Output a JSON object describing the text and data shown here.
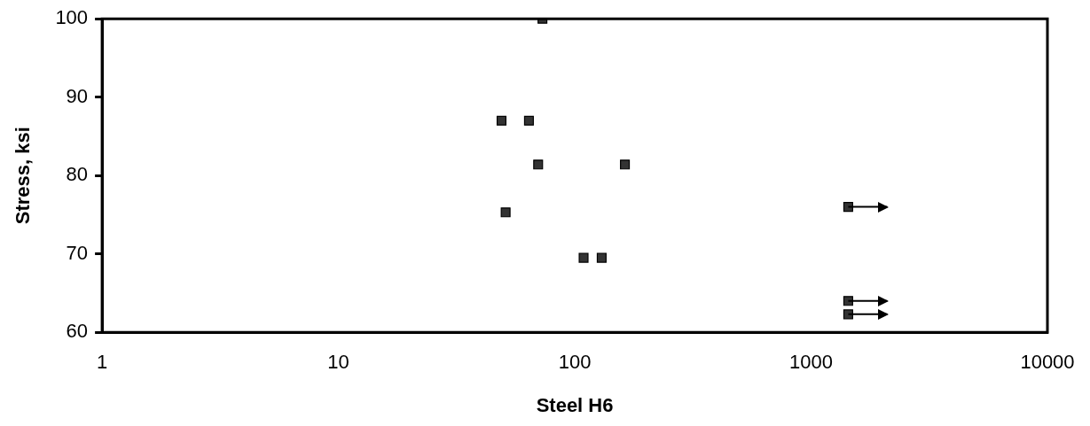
{
  "chart_data": {
    "type": "scatter",
    "xlabel": "Steel H6",
    "ylabel": "Stress, ksi",
    "log": "x",
    "xlim": [
      1,
      10000
    ],
    "xticks": [
      1,
      10,
      100,
      1000,
      10000
    ],
    "ylim": [
      60,
      100
    ],
    "yticks": [
      60,
      70,
      80,
      90,
      100
    ],
    "grid": false,
    "legend": false,
    "marker": "square",
    "series": [
      {
        "color": "#333333",
        "x": [
          73,
          49,
          64,
          70,
          163,
          51,
          109,
          130,
          1436,
          1436,
          1436
        ],
        "values": [
          100,
          87,
          87,
          81.4,
          81.4,
          75.3,
          69.5,
          69.5,
          76,
          64,
          62.3
        ],
        "xerrors": [
          null,
          null,
          null,
          null,
          null,
          null,
          null,
          null,
          [
            1436,
            2100
          ],
          [
            1436,
            2100
          ],
          [
            1436,
            2100
          ]
        ]
      }
    ]
  }
}
